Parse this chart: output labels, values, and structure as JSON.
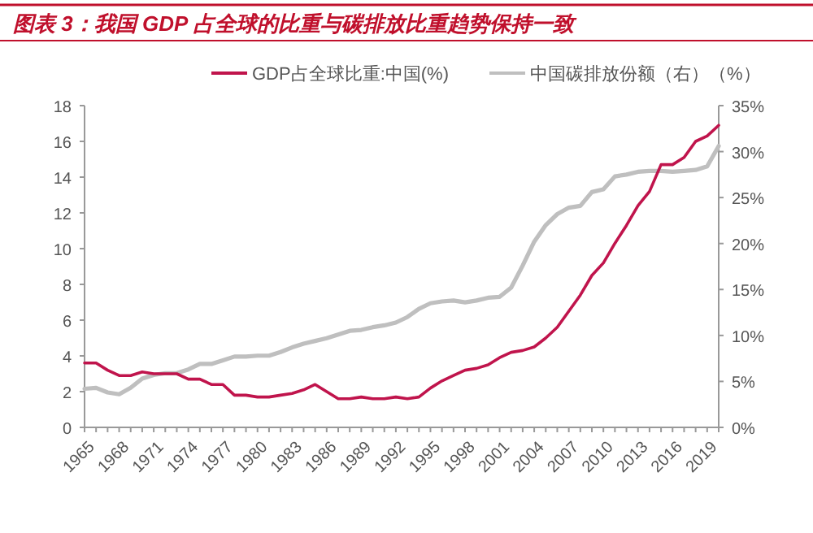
{
  "chart_data": {
    "type": "line",
    "title": "图表 3：我国 GDP 占全球的比重与碳排放比重趋势保持一致",
    "x": [
      1965,
      1966,
      1967,
      1968,
      1969,
      1970,
      1971,
      1972,
      1973,
      1974,
      1975,
      1976,
      1977,
      1978,
      1979,
      1980,
      1981,
      1982,
      1983,
      1984,
      1985,
      1986,
      1987,
      1988,
      1989,
      1990,
      1991,
      1992,
      1993,
      1994,
      1995,
      1996,
      1997,
      1998,
      1999,
      2000,
      2001,
      2002,
      2003,
      2004,
      2005,
      2006,
      2007,
      2008,
      2009,
      2010,
      2011,
      2012,
      2013,
      2014,
      2015,
      2016,
      2017,
      2018,
      2019,
      2020
    ],
    "series": [
      {
        "name": "GDP占全球比重:中国(%)",
        "color": "#c0144c",
        "values": [
          3.6,
          3.6,
          3.2,
          2.9,
          2.9,
          3.1,
          3.0,
          3.0,
          3.0,
          2.7,
          2.7,
          2.4,
          2.4,
          1.8,
          1.8,
          1.7,
          1.7,
          1.8,
          1.9,
          2.1,
          2.4,
          2.0,
          1.6,
          1.6,
          1.7,
          1.6,
          1.6,
          1.7,
          1.6,
          1.7,
          2.2,
          2.6,
          2.9,
          3.2,
          3.3,
          3.5,
          3.9,
          4.2,
          4.3,
          4.5,
          5.0,
          5.6,
          6.5,
          7.4,
          8.5,
          9.2,
          10.3,
          11.3,
          12.4,
          13.2,
          14.7,
          14.7,
          15.1,
          16.0,
          16.3,
          16.9
        ]
      },
      {
        "name": "中国碳排放份额（右）（%）",
        "color": "#bfbfbf",
        "axis": "y2",
        "values": [
          4.2,
          4.3,
          3.8,
          3.6,
          4.3,
          5.3,
          5.7,
          5.9,
          5.9,
          6.3,
          6.9,
          6.9,
          7.3,
          7.7,
          7.7,
          7.8,
          7.8,
          8.2,
          8.7,
          9.1,
          9.4,
          9.7,
          10.1,
          10.5,
          10.6,
          10.9,
          11.1,
          11.4,
          12.0,
          12.9,
          13.5,
          13.7,
          13.8,
          13.6,
          13.8,
          14.1,
          14.2,
          15.2,
          17.6,
          20.2,
          22.0,
          23.2,
          23.9,
          24.1,
          25.6,
          25.9,
          27.3,
          27.5,
          27.8,
          27.9,
          27.9,
          27.8,
          27.9,
          28.0,
          28.4,
          30.6
        ]
      }
    ],
    "xlim": [
      1965,
      2020
    ],
    "xticks": [
      1965,
      {
        "value": 1966,
        "label": null
      },
      {
        "value": 1967,
        "label": null
      },
      1968,
      {
        "value": 1969,
        "label": null
      },
      {
        "value": 1970,
        "label": null
      },
      1971,
      {
        "value": 1972,
        "label": null
      },
      {
        "value": 1973,
        "label": null
      },
      1974,
      {
        "value": 1975,
        "label": null
      },
      {
        "value": 1976,
        "label": null
      },
      1977,
      {
        "value": 1978,
        "label": null
      },
      {
        "value": 1979,
        "label": null
      },
      1980,
      {
        "value": 1981,
        "label": null
      },
      {
        "value": 1982,
        "label": null
      },
      1983,
      {
        "value": 1984,
        "label": null
      },
      {
        "value": 1985,
        "label": null
      },
      1986,
      {
        "value": 1987,
        "label": null
      },
      {
        "value": 1988,
        "label": null
      },
      1989,
      {
        "value": 1990,
        "label": null
      },
      {
        "value": 1991,
        "label": null
      },
      1992,
      {
        "value": 1993,
        "label": null
      },
      {
        "value": 1994,
        "label": null
      },
      1995,
      {
        "value": 1996,
        "label": null
      },
      {
        "value": 1997,
        "label": null
      },
      1998,
      {
        "value": 1999,
        "label": null
      },
      {
        "value": 2000,
        "label": null
      },
      2001,
      {
        "value": 2002,
        "label": null
      },
      {
        "value": 2003,
        "label": null
      },
      2004,
      {
        "value": 2005,
        "label": null
      },
      {
        "value": 2006,
        "label": null
      },
      2007,
      {
        "value": 2008,
        "label": null
      },
      {
        "value": 2009,
        "label": null
      },
      2010,
      {
        "value": 2011,
        "label": null
      },
      {
        "value": 2012,
        "label": null
      },
      2013,
      {
        "value": 2014,
        "label": null
      },
      {
        "value": 2015,
        "label": null
      },
      2016,
      {
        "value": 2017,
        "label": null
      },
      {
        "value": 2018,
        "label": null
      },
      2019,
      {
        "value": 2020,
        "label": null
      }
    ],
    "ylim": [
      0,
      18
    ],
    "yticks": [
      0,
      2,
      4,
      6,
      8,
      10,
      12,
      14,
      16,
      18
    ],
    "y2lim": [
      0,
      35
    ],
    "y2ticks": [
      {
        "value": 0,
        "label": "0%"
      },
      {
        "value": 5,
        "label": "5%"
      },
      {
        "value": 10,
        "label": "10%"
      },
      {
        "value": 15,
        "label": "15%"
      },
      {
        "value": 20,
        "label": "20%"
      },
      {
        "value": 25,
        "label": "25%"
      },
      {
        "value": 30,
        "label": "30%"
      },
      {
        "value": 35,
        "label": "35%"
      }
    ],
    "legend": "top",
    "grid": false,
    "marker": "none",
    "line_style": "solid"
  }
}
